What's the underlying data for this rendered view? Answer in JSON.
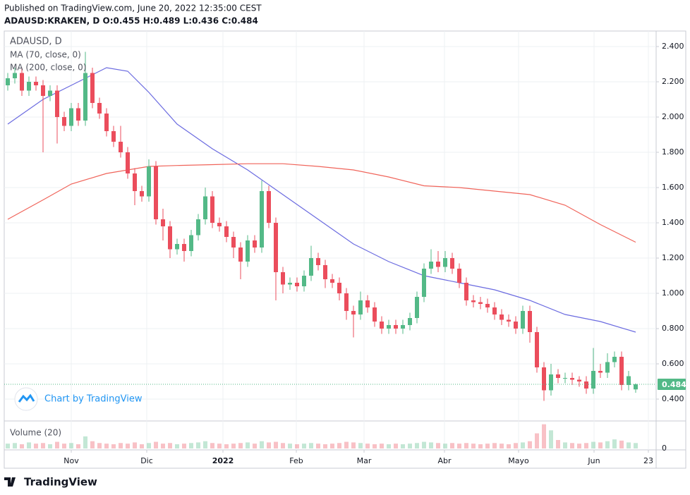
{
  "header": {
    "published": "Published on TradingView.com, June 20, 2022 12:35:00 CEST",
    "symbol_line": "ADAUSD:KRAKEN, D O:0.455 H:0.489 L:0.436 C:0.484"
  },
  "chart_data": {
    "type": "candlestick",
    "title": "ADAUSD, D",
    "volume_label": "Volume (20)",
    "watermark": "Chart by TradingView",
    "footer": "TradingView",
    "up_color": "#53b987",
    "down_color": "#eb4d5c",
    "open": [
      2.18,
      2.22,
      2.25,
      2.15,
      2.2,
      2.18,
      2.12,
      2.15,
      2.0,
      1.95,
      2.05,
      1.98,
      2.25,
      2.08,
      2.02,
      1.92,
      1.86,
      1.8,
      1.68,
      1.58,
      1.55,
      1.72,
      1.42,
      1.38,
      1.25,
      1.28,
      1.24,
      1.33,
      1.42,
      1.55,
      1.4,
      1.38,
      1.32,
      1.26,
      1.18,
      1.3,
      1.26,
      1.58,
      1.4,
      1.12,
      1.05,
      1.06,
      1.04,
      1.1,
      1.2,
      1.16,
      1.08,
      1.06,
      1.0,
      0.9,
      0.88,
      0.96,
      0.92,
      0.84,
      0.8,
      0.82,
      0.8,
      0.82,
      0.86,
      0.98,
      1.14,
      1.18,
      1.15,
      1.2,
      1.14,
      1.06,
      0.96,
      0.95,
      0.94,
      0.92,
      0.88,
      0.85,
      0.84,
      0.8,
      0.9,
      0.78,
      0.58,
      0.45,
      0.54,
      0.52,
      0.52,
      0.51,
      0.5,
      0.46,
      0.56,
      0.55,
      0.61,
      0.64,
      0.48,
      0.455
    ],
    "high": [
      2.25,
      2.28,
      2.28,
      2.23,
      2.23,
      2.21,
      2.18,
      2.18,
      2.03,
      2.08,
      2.08,
      2.37,
      2.28,
      2.11,
      2.05,
      1.95,
      1.95,
      1.83,
      1.71,
      1.61,
      1.76,
      1.75,
      1.48,
      1.41,
      1.31,
      1.31,
      1.36,
      1.45,
      1.6,
      1.58,
      1.43,
      1.41,
      1.35,
      1.29,
      1.33,
      1.33,
      1.64,
      1.61,
      1.43,
      1.15,
      1.09,
      1.09,
      1.13,
      1.27,
      1.23,
      1.19,
      1.11,
      1.09,
      1.03,
      0.93,
      1.01,
      0.99,
      0.95,
      0.87,
      0.85,
      0.85,
      0.85,
      0.89,
      1.01,
      1.17,
      1.25,
      1.24,
      1.24,
      1.23,
      1.17,
      1.09,
      0.99,
      0.98,
      0.97,
      0.95,
      0.91,
      0.88,
      0.87,
      0.93,
      0.93,
      0.81,
      0.61,
      0.6,
      0.57,
      0.55,
      0.55,
      0.53,
      0.53,
      0.69,
      0.6,
      0.66,
      0.67,
      0.67,
      0.56,
      0.489
    ],
    "low": [
      2.15,
      2.19,
      2.12,
      2.12,
      2.15,
      1.8,
      2.09,
      1.85,
      1.92,
      1.92,
      1.95,
      1.95,
      2.05,
      1.99,
      1.89,
      1.83,
      1.77,
      1.65,
      1.5,
      1.52,
      1.52,
      1.39,
      1.3,
      1.2,
      1.22,
      1.18,
      1.21,
      1.3,
      1.39,
      1.37,
      1.35,
      1.29,
      1.2,
      1.08,
      1.15,
      1.23,
      1.23,
      1.37,
      0.96,
      1.0,
      1.02,
      1.01,
      1.01,
      1.07,
      1.13,
      1.03,
      1.03,
      0.96,
      0.85,
      0.75,
      0.85,
      0.89,
      0.81,
      0.77,
      0.77,
      0.77,
      0.77,
      0.79,
      0.83,
      0.95,
      1.11,
      1.12,
      1.12,
      1.11,
      1.03,
      0.93,
      0.92,
      0.91,
      0.89,
      0.85,
      0.82,
      0.81,
      0.77,
      0.77,
      0.72,
      0.55,
      0.39,
      0.42,
      0.49,
      0.49,
      0.48,
      0.47,
      0.43,
      0.43,
      0.52,
      0.52,
      0.58,
      0.45,
      0.45,
      0.436
    ],
    "close": [
      2.22,
      2.25,
      2.15,
      2.2,
      2.18,
      2.12,
      2.15,
      2.0,
      1.95,
      2.05,
      1.98,
      2.25,
      2.08,
      2.02,
      1.92,
      1.86,
      1.8,
      1.68,
      1.58,
      1.55,
      1.72,
      1.42,
      1.38,
      1.25,
      1.28,
      1.24,
      1.33,
      1.42,
      1.55,
      1.4,
      1.38,
      1.32,
      1.26,
      1.18,
      1.3,
      1.26,
      1.58,
      1.4,
      1.12,
      1.05,
      1.06,
      1.04,
      1.1,
      1.2,
      1.16,
      1.08,
      1.06,
      1.0,
      0.9,
      0.88,
      0.96,
      0.92,
      0.84,
      0.8,
      0.82,
      0.8,
      0.82,
      0.86,
      0.98,
      1.14,
      1.18,
      1.15,
      1.2,
      1.14,
      1.06,
      0.96,
      0.95,
      0.94,
      0.92,
      0.88,
      0.85,
      0.84,
      0.8,
      0.9,
      0.78,
      0.58,
      0.45,
      0.54,
      0.52,
      0.52,
      0.51,
      0.5,
      0.46,
      0.56,
      0.55,
      0.61,
      0.64,
      0.48,
      0.53,
      0.484
    ],
    "volume": [
      8,
      9,
      7,
      10,
      8,
      9,
      7,
      11,
      8,
      9,
      7,
      20,
      12,
      9,
      8,
      7,
      9,
      8,
      10,
      7,
      9,
      11,
      8,
      9,
      7,
      8,
      9,
      10,
      12,
      9,
      8,
      7,
      8,
      9,
      10,
      8,
      12,
      10,
      11,
      9,
      8,
      7,
      8,
      9,
      8,
      7,
      8,
      9,
      11,
      10,
      9,
      8,
      7,
      8,
      7,
      8,
      7,
      8,
      9,
      11,
      10,
      9,
      8,
      9,
      8,
      9,
      8,
      7,
      8,
      9,
      8,
      7,
      9,
      10,
      12,
      25,
      40,
      30,
      14,
      10,
      9,
      8,
      9,
      11,
      10,
      12,
      15,
      13,
      10,
      9
    ],
    "vlim": [
      0,
      42
    ],
    "vticks": [
      0
    ],
    "ma": [
      {
        "name": "MA (70, close, 0)",
        "color": "#6b6be0",
        "x": [
          0,
          5,
          9,
          14,
          17,
          20,
          24,
          29,
          34,
          39,
          44,
          49,
          54,
          59,
          64,
          69,
          74,
          79,
          84,
          89
        ],
        "values": [
          1.96,
          2.1,
          2.18,
          2.28,
          2.26,
          2.14,
          1.96,
          1.82,
          1.7,
          1.56,
          1.42,
          1.28,
          1.18,
          1.1,
          1.06,
          1.02,
          0.96,
          0.88,
          0.84,
          0.78
        ]
      },
      {
        "name": "MA (200, close, 0)",
        "color": "#f0645a",
        "x": [
          0,
          5,
          9,
          14,
          17,
          20,
          24,
          29,
          34,
          39,
          44,
          49,
          54,
          59,
          64,
          69,
          74,
          79,
          84,
          89
        ],
        "values": [
          1.42,
          1.53,
          1.62,
          1.68,
          1.7,
          1.72,
          1.725,
          1.73,
          1.735,
          1.735,
          1.72,
          1.7,
          1.66,
          1.61,
          1.6,
          1.58,
          1.56,
          1.5,
          1.39,
          1.29
        ]
      }
    ],
    "xlim": [
      -0.5,
      91.9
    ],
    "xticks": [
      {
        "value": 9.0,
        "label": "Nov"
      },
      {
        "value": 19.7,
        "label": "Dic"
      },
      {
        "value": 30.5,
        "label": "2022"
      },
      {
        "value": 40.9,
        "label": "Feb"
      },
      {
        "value": 50.5,
        "label": "Mar"
      },
      {
        "value": 61.9,
        "label": "Abr"
      },
      {
        "value": 72.4,
        "label": "Mayo"
      },
      {
        "value": 83.1,
        "label": "Jun"
      },
      {
        "value": 90.8,
        "label": "23"
      }
    ],
    "ylim": [
      0.276,
      2.488
    ],
    "yticks": [
      {
        "value": 0.4,
        "label": "0.400"
      },
      {
        "value": 0.6,
        "label": "0.600"
      },
      {
        "value": 0.8,
        "label": "0.800"
      },
      {
        "value": 1.0,
        "label": "1.000"
      },
      {
        "value": 1.2,
        "label": "1.200"
      },
      {
        "value": 1.4,
        "label": "1.400"
      },
      {
        "value": 1.6,
        "label": "1.600"
      },
      {
        "value": 1.8,
        "label": "1.800"
      },
      {
        "value": 2.0,
        "label": "2.000"
      },
      {
        "value": 2.2,
        "label": "2.200"
      },
      {
        "value": 2.4,
        "label": "2.400"
      }
    ],
    "grid": true
  }
}
